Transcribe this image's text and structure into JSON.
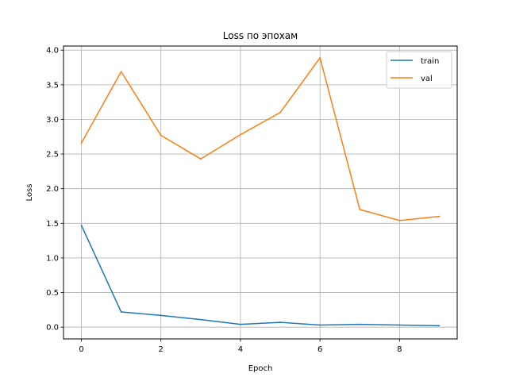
{
  "chart_data": {
    "type": "line",
    "title": "Loss по эпохам",
    "xlabel": "Epoch",
    "ylabel": "Loss",
    "x": [
      0,
      1,
      2,
      3,
      4,
      5,
      6,
      7,
      8,
      9
    ],
    "xlim": [
      -0.45,
      9.45
    ],
    "ylim": [
      -0.17,
      4.06
    ],
    "xticks": [
      0,
      2,
      4,
      6,
      8
    ],
    "xtick_labels": [
      "0",
      "2",
      "4",
      "6",
      "8"
    ],
    "yticks": [
      0.0,
      0.5,
      1.0,
      1.5,
      2.0,
      2.5,
      3.0,
      3.5,
      4.0
    ],
    "ytick_labels": [
      "0.0",
      "0.5",
      "1.0",
      "1.5",
      "2.0",
      "2.5",
      "3.0",
      "3.5",
      "4.0"
    ],
    "grid": true,
    "legend_position": "top-right",
    "series": [
      {
        "name": "train",
        "color": "#1f77b4",
        "values": [
          1.47,
          0.22,
          0.17,
          0.11,
          0.04,
          0.07,
          0.03,
          0.04,
          0.03,
          0.02
        ]
      },
      {
        "name": "val",
        "color": "#ff7f0e",
        "values": [
          2.66,
          3.69,
          2.77,
          2.43,
          2.78,
          3.1,
          3.89,
          1.7,
          1.54,
          1.6
        ]
      }
    ]
  }
}
